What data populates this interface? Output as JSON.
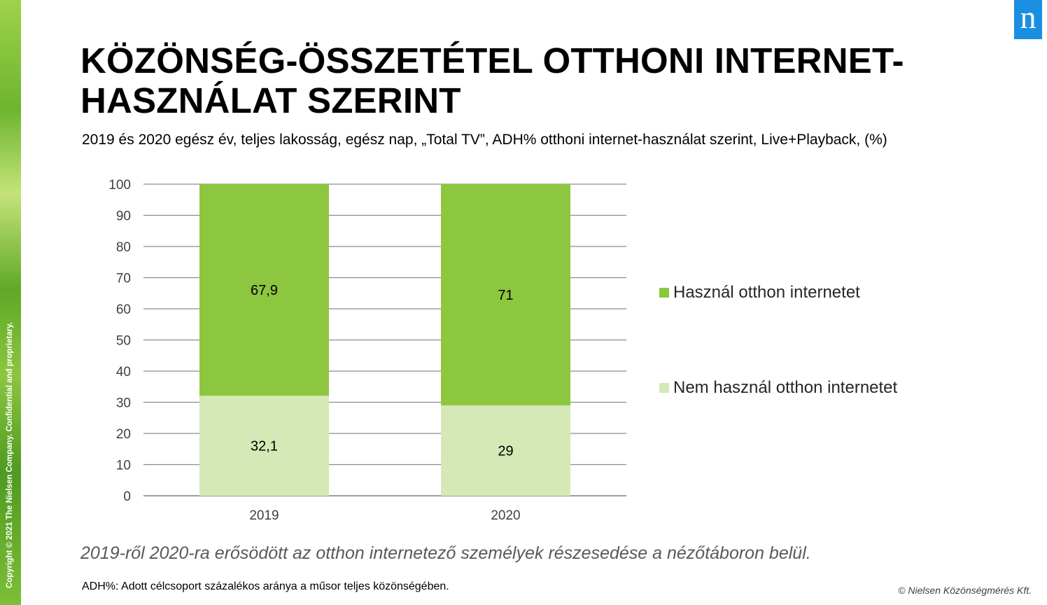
{
  "slide": {
    "logo_letter": "n",
    "copyright": "Copyright © 2021 The Nielsen Company. Confidential and proprietary.",
    "title": "KÖZÖNSÉG-ÖSSZETÉTEL OTTHONI INTERNET-HASZNÁLAT SZERINT",
    "subtitle": "2019 és 2020 egész év, teljes lakosság, egész nap, „Total TV”, ADH% otthoni internet-használat szerint, Live+Playback, (%)",
    "caption": "2019-ről 2020-ra erősödött az otthon internetező személyek részesedése a nézőtáboron belül.",
    "footnote": "ADH%: Adott célcsoport százalékos aránya a műsor teljes közönségében.",
    "credit": "© Nielsen Közönségmérés Kft."
  },
  "chart_data": {
    "type": "bar",
    "stacked": true,
    "categories": [
      "2019",
      "2020"
    ],
    "series": [
      {
        "name": "Nem használ otthon internetet",
        "values": [
          32.1,
          29
        ],
        "labels": [
          "32,1",
          "29"
        ],
        "color": "#d4e9b5"
      },
      {
        "name": "Használ otthon internetet",
        "values": [
          67.9,
          71
        ],
        "labels": [
          "67,9",
          "71"
        ],
        "color": "#8dc63f"
      }
    ],
    "ylim": [
      0,
      100
    ],
    "yticks": [
      0,
      10,
      20,
      30,
      40,
      50,
      60,
      70,
      80,
      90,
      100
    ],
    "grid": true,
    "legend_position": "right"
  }
}
